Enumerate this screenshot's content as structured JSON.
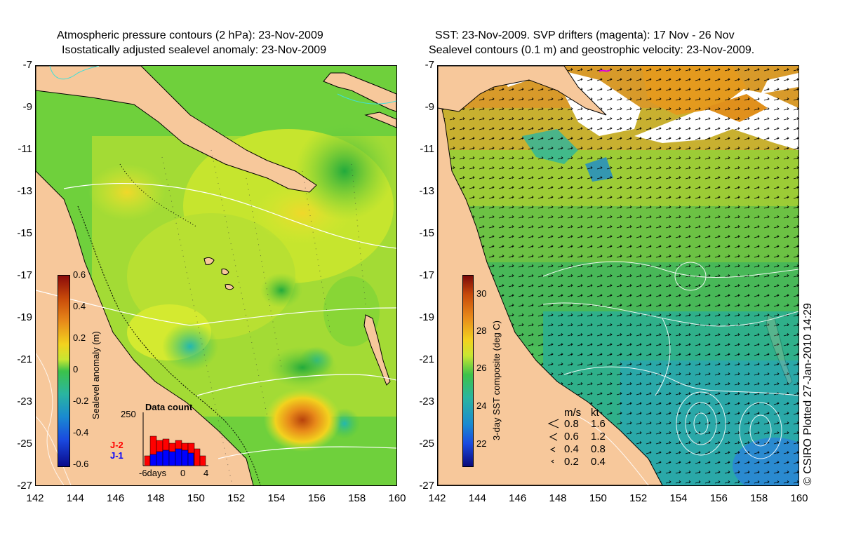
{
  "left": {
    "title_line1": "Atmospheric pressure contours (2 hPa): 23-Nov-2009",
    "title_line2": "Isostatically adjusted sealevel anomaly: 23-Nov-2009",
    "colorbar_label": "Sealevel anomaly (m)",
    "colorbar_ticks": [
      "0.6",
      "0.4",
      "0.2",
      "0",
      "-0.2",
      "-0.4",
      "-0.6"
    ],
    "data_count": {
      "title": "Data count",
      "max_label": "250",
      "series": [
        {
          "name": "J-2",
          "color": "#ff0000"
        },
        {
          "name": "J-1",
          "color": "#0000ff"
        }
      ],
      "x_ticks": [
        "-6days",
        "0",
        "4"
      ]
    }
  },
  "right": {
    "title_line1": "SST: 23-Nov-2009. SVP drifters (magenta): 17 Nov - 26 Nov",
    "title_line2": "Sealevel contours (0.1 m) and geostrophic velocity: 23-Nov-2009.",
    "colorbar_label": "3-day SST composite (deg C)",
    "colorbar_ticks": [
      "30",
      "28",
      "26",
      "24",
      "22"
    ],
    "velocity_legend": {
      "header_ms": "m/s",
      "header_kt": "kt",
      "rows": [
        {
          "ms": "0.8",
          "kt": "1.6"
        },
        {
          "ms": "0.6",
          "kt": "1.2"
        },
        {
          "ms": "0.4",
          "kt": "0.8"
        },
        {
          "ms": "0.2",
          "kt": "0.4"
        }
      ]
    }
  },
  "axes": {
    "y_ticks": [
      "-7",
      "-9",
      "-11",
      "-13",
      "-15",
      "-17",
      "-19",
      "-21",
      "-23",
      "-25",
      "-27"
    ],
    "x_ticks": [
      "142",
      "144",
      "146",
      "148",
      "150",
      "152",
      "154",
      "156",
      "158",
      "160"
    ]
  },
  "credit": "© CSIRO Plotted 27-Jan-2010 14:29",
  "colors": {
    "land": "#f7c89b",
    "ocean_green": "#3cc24a",
    "ocean_yellow": "#c8e632",
    "anomaly_high": "#c84a0a",
    "sst_warm": "#e49a1e",
    "sst_cool": "#2ab5a0"
  }
}
